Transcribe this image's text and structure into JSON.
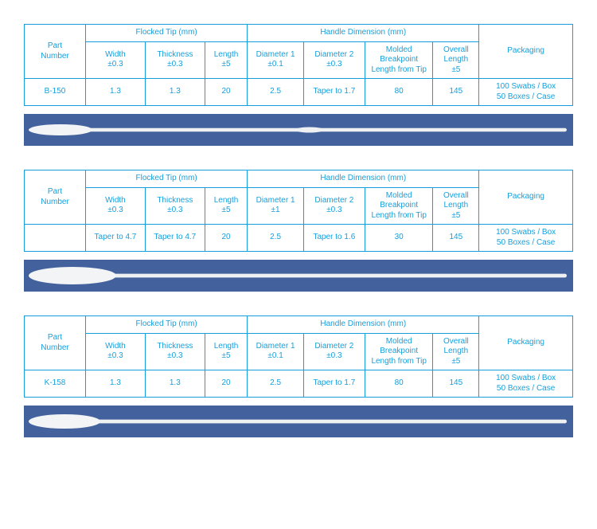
{
  "colors": {
    "border": "#15a0dd",
    "text": "#15a0dd",
    "page_bg": "#ffffff",
    "photo_bg_top": "#2f4f8f",
    "photo_bg_bottom": "#6a86b8",
    "swab_tip": "#f2f4f6",
    "swab_shaft": "#eef0f2"
  },
  "shared_headers": {
    "part_number": "Part\nNumber",
    "flocked_tip": "Flocked Tip (mm)",
    "handle_dim": "Handle Dimension (mm)",
    "packaging": "Packaging",
    "width": "Width\n±0.3",
    "thickness": "Thickness\n±0.3",
    "length": "Length\n±5",
    "diam2": "Diameter 2\n±0.3",
    "breakpoint": "Molded\nBreakpoint\nLength from Tip",
    "overall": "Overall\nLength\n±5"
  },
  "blocks": [
    {
      "diam1_header": "Diameter 1\n±0.1",
      "row": {
        "part": "B-150",
        "width": "1.3",
        "thickness": "1.3",
        "length": "20",
        "diam1": "2.5",
        "diam2": "Taper to 1.7",
        "breakpoint": "80",
        "overall": "145",
        "packaging": "100 Swabs / Box\n50 Boxes / Case"
      },
      "swab": {
        "tip_len": 80,
        "tip_r": 7,
        "shaft_r": 2.2,
        "mid_bulge": true
      }
    },
    {
      "diam1_header": "Diameter 1\n±1",
      "row": {
        "part": "",
        "width": "Taper to 4.7",
        "thickness": "Taper to 4.7",
        "length": "20",
        "diam1": "2.5",
        "diam2": "Taper to 1.6",
        "breakpoint": "30",
        "overall": "145",
        "packaging": "100 Swabs / Box\n50 Boxes / Case"
      },
      "swab": {
        "tip_len": 110,
        "tip_r": 11,
        "shaft_r": 2.4,
        "mid_bulge": false
      }
    },
    {
      "diam1_header": "Diameter 1\n±0.1",
      "row": {
        "part": "K-158",
        "width": "1.3",
        "thickness": "1.3",
        "length": "20",
        "diam1": "2.5",
        "diam2": "Taper to 1.7",
        "breakpoint": "80",
        "overall": "145",
        "packaging": "100 Swabs / Box\n50 Boxes / Case"
      },
      "swab": {
        "tip_len": 90,
        "tip_r": 9,
        "shaft_r": 2.4,
        "mid_bulge": false
      }
    }
  ]
}
